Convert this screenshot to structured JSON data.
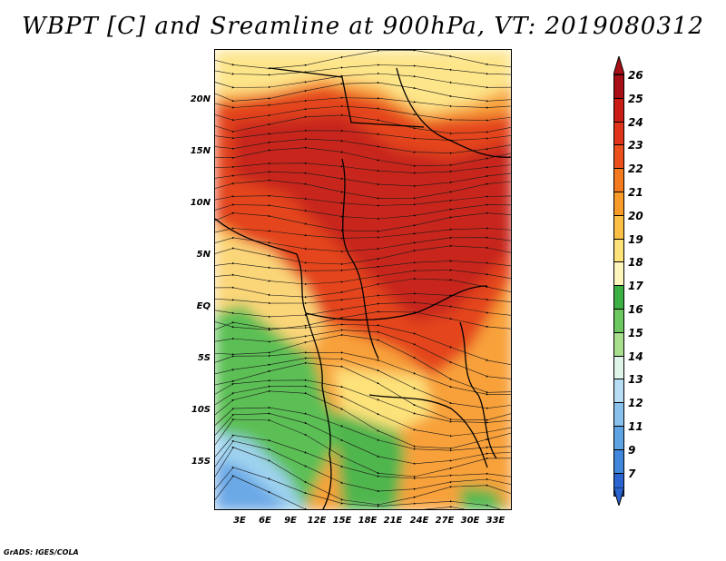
{
  "title": "WBPT [C] and Sreamline at 900hPa, VT: 2019080312",
  "footer": "GrADS: IGES/COLA",
  "map": {
    "lat_labels": [
      "20N",
      "15N",
      "10N",
      "5N",
      "EQ",
      "5S",
      "10S",
      "15S"
    ],
    "lon_labels": [
      "3E",
      "6E",
      "9E",
      "12E",
      "15E",
      "18E",
      "21E",
      "24E",
      "27E",
      "30E",
      "33E"
    ]
  },
  "colorbar": {
    "labels": [
      "26",
      "25",
      "24",
      "23",
      "22",
      "21",
      "20",
      "19",
      "18",
      "17",
      "16",
      "15",
      "14",
      "13",
      "12",
      "11",
      "9",
      "7"
    ],
    "colors": [
      "#a50f15",
      "#c91c14",
      "#e0341a",
      "#ea4f1c",
      "#f47a1f",
      "#f89b29",
      "#fbbf45",
      "#fde27a",
      "#fef6bd",
      "#3cb043",
      "#6cc760",
      "#a8de8e",
      "#dff5e9",
      "#b7ddf4",
      "#89c0ec",
      "#5ea4e5",
      "#3f86dc",
      "#2a64d0"
    ]
  }
}
